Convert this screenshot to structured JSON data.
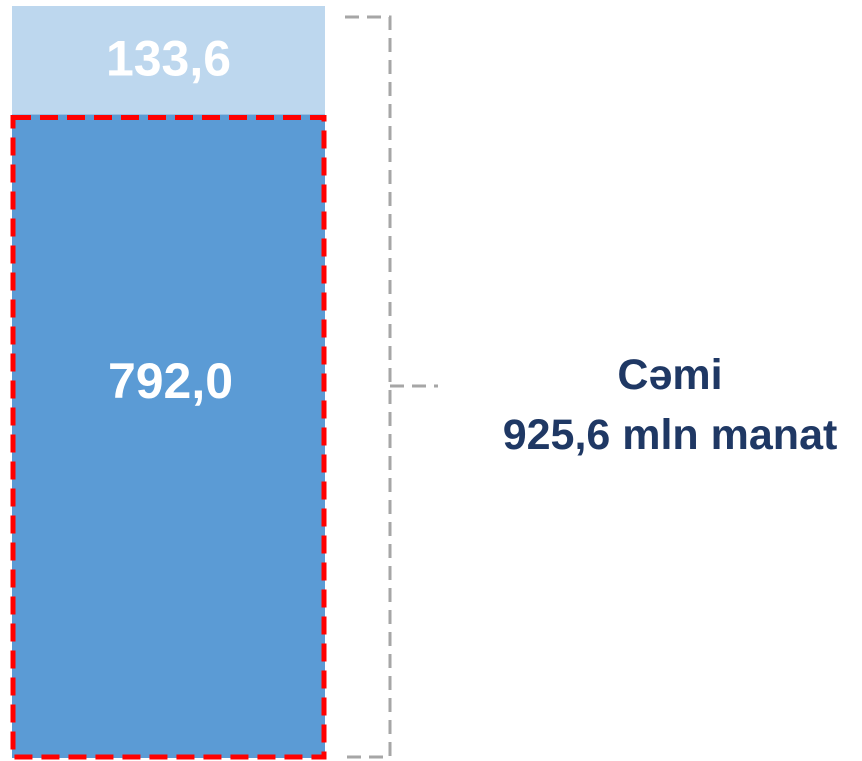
{
  "chart_data": {
    "type": "bar",
    "stacked": true,
    "categories": [
      ""
    ],
    "series": [
      {
        "values": [
          792.0
        ],
        "label": "792,0",
        "color": "#5b9bd5",
        "highlighted": true
      },
      {
        "values": [
          133.6
        ],
        "label": "133,6",
        "color": "#bdd7ee"
      }
    ],
    "total": {
      "value": 925.6,
      "line1": "Cəmi",
      "line2": "925,6 mln manat"
    },
    "ylim": [
      0,
      925.6
    ],
    "grid": false,
    "legend": "none",
    "colors": {
      "highlight_border": "#ff0000",
      "bracket": "#a6a6a6",
      "total_text": "#1f3864",
      "label_text": "#ffffff"
    }
  }
}
